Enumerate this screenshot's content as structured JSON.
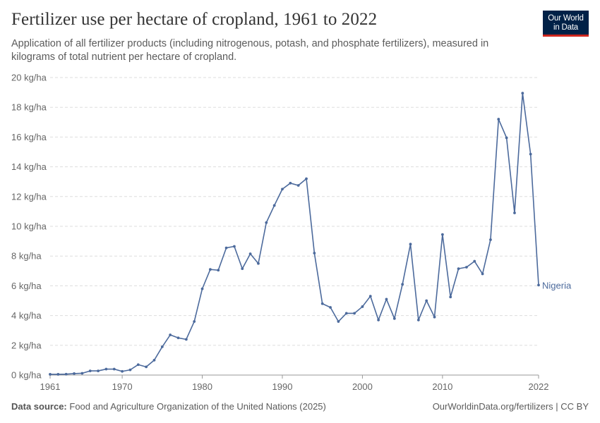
{
  "header": {
    "title": "Fertilizer use per hectare of cropland, 1961 to 2022",
    "subtitle": "Application of all fertilizer products (including nitrogenous, potash, and phosphate fertilizers), measured in kilograms of total nutrient per hectare of cropland."
  },
  "logo": {
    "line1": "Our World",
    "line2": "in Data"
  },
  "footer": {
    "source_label": "Data source:",
    "source_text": "Food and Agriculture Organization of the United Nations (2025)",
    "link": "OurWorldinData.org/fertilizers | CC BY"
  },
  "colors": {
    "series": "#4c6a9c",
    "grid": "#dddddd",
    "text": "#666666"
  },
  "chart_data": {
    "type": "line",
    "title": "Fertilizer use per hectare of cropland, 1961 to 2022",
    "xlabel": "",
    "ylabel": "",
    "ylim": [
      0,
      20
    ],
    "xlim": [
      1961,
      2022
    ],
    "y_ticks": [
      0,
      2,
      4,
      6,
      8,
      10,
      12,
      14,
      16,
      18,
      20
    ],
    "y_tick_suffix": " kg/ha",
    "x_ticks": [
      1961,
      1970,
      1980,
      1990,
      2000,
      2010,
      2022
    ],
    "grid": true,
    "series": [
      {
        "name": "Nigeria",
        "x": [
          1961,
          1962,
          1963,
          1964,
          1965,
          1966,
          1967,
          1968,
          1969,
          1970,
          1971,
          1972,
          1973,
          1974,
          1975,
          1976,
          1977,
          1978,
          1979,
          1980,
          1981,
          1982,
          1983,
          1984,
          1985,
          1986,
          1987,
          1988,
          1989,
          1990,
          1991,
          1992,
          1993,
          1994,
          1995,
          1996,
          1997,
          1998,
          1999,
          2000,
          2001,
          2002,
          2003,
          2004,
          2005,
          2006,
          2007,
          2008,
          2009,
          2010,
          2011,
          2012,
          2013,
          2014,
          2015,
          2016,
          2017,
          2018,
          2019,
          2020,
          2021,
          2022
        ],
        "values": [
          0.05,
          0.05,
          0.06,
          0.1,
          0.12,
          0.28,
          0.28,
          0.4,
          0.4,
          0.25,
          0.35,
          0.7,
          0.55,
          1.0,
          1.9,
          2.7,
          2.5,
          2.4,
          3.6,
          5.8,
          7.1,
          7.05,
          8.55,
          8.65,
          7.15,
          8.15,
          7.5,
          10.25,
          11.4,
          12.5,
          12.9,
          12.75,
          13.2,
          8.2,
          4.8,
          4.55,
          3.6,
          4.15,
          4.15,
          4.6,
          5.3,
          3.7,
          5.1,
          3.8,
          6.1,
          8.8,
          3.7,
          5.0,
          3.9,
          9.45,
          5.25,
          7.15,
          7.25,
          7.65,
          6.8,
          9.1,
          17.2,
          15.95,
          10.9,
          18.95,
          14.85,
          6.05
        ]
      }
    ]
  }
}
